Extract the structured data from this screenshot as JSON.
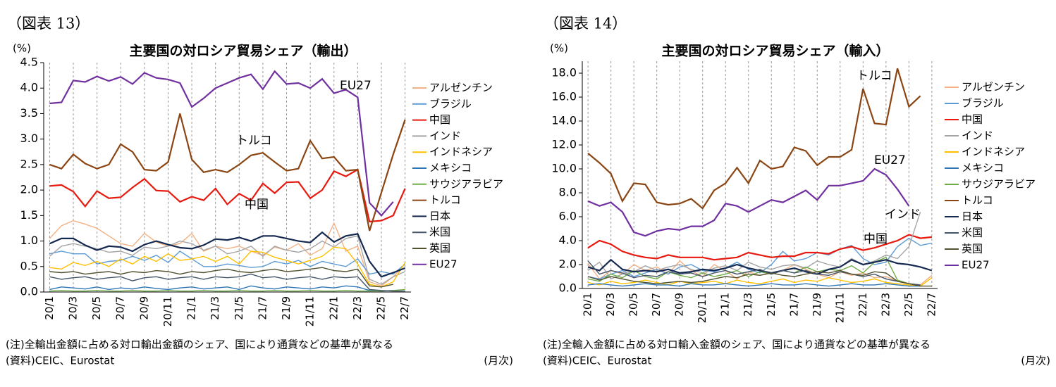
{
  "chart_data": [
    {
      "type": "line",
      "figure_label": "（図表 13）",
      "title": "主要国の対ロシア貿易シェア（輸出）",
      "y_unit": "(%)",
      "note": "(注)全輸出金額に占める対ロ輸出金額のシェア、国により通貨などの基準が異なる",
      "source": "(資料)CEIC、Eurostat",
      "x_unit": "(月次)",
      "categories": [
        "20/1",
        null,
        "20/3",
        null,
        "20/5",
        null,
        "20/7",
        null,
        "20/9",
        null,
        "20/11",
        null,
        "21/1",
        null,
        "21/3",
        null,
        "21/5",
        null,
        "21/7",
        null,
        "21/9",
        null,
        "21/11",
        null,
        "22/1",
        null,
        "22/3",
        null,
        "22/5",
        null,
        "22/7"
      ],
      "ylim": [
        0,
        4.5
      ],
      "yticks": [
        {
          "value": 0,
          "label": "0.0"
        },
        0.5,
        {
          "value": 1,
          "label": "1.0"
        },
        1.5,
        {
          "value": 2,
          "label": "2.0"
        },
        2.5,
        {
          "value": 3,
          "label": "3.0"
        },
        3.5,
        {
          "value": 4,
          "label": "4.0"
        },
        4.5
      ],
      "grid": true,
      "series": [
        {
          "name": "アルゼンチン",
          "color": "#f4b183",
          "values": [
            1.05,
            1.3,
            1.4,
            1.33,
            1.25,
            1.1,
            0.95,
            0.9,
            1.15,
            0.98,
            0.9,
            0.95,
            1.15,
            0.8,
            0.9,
            0.85,
            0.9,
            0.8,
            0.72,
            0.88,
            0.82,
            0.95,
            0.72,
            0.85,
            1.35,
            0.8,
            0.9,
            0.2,
            0.12,
            0.3,
            0.55
          ]
        },
        {
          "name": "ブラジル",
          "color": "#5b9bd5",
          "values": [
            0.75,
            0.8,
            0.75,
            0.75,
            0.55,
            0.6,
            0.62,
            0.7,
            0.62,
            0.72,
            0.58,
            0.8,
            0.65,
            0.5,
            0.5,
            0.55,
            0.52,
            0.48,
            0.5,
            0.6,
            0.55,
            0.62,
            0.5,
            0.6,
            0.55,
            0.5,
            0.65,
            0.35,
            0.4,
            0.35,
            0.55
          ]
        },
        {
          "name": "中国",
          "color": "#e8190f",
          "values": [
            2.08,
            2.1,
            1.97,
            1.68,
            1.98,
            1.84,
            1.86,
            2.05,
            2.22,
            1.99,
            1.98,
            1.77,
            1.87,
            1.8,
            2.03,
            1.72,
            1.93,
            1.8,
            2.13,
            1.94,
            2.15,
            2.16,
            1.84,
            2.0,
            2.37,
            2.27,
            2.4,
            1.38,
            1.4,
            1.5,
            2.03
          ]
        },
        {
          "name": "インド",
          "color": "#a5a5a5",
          "values": [
            0.7,
            0.9,
            0.95,
            0.9,
            0.85,
            0.78,
            0.8,
            0.72,
            0.88,
            0.85,
            0.9,
            1.0,
            0.95,
            0.82,
            0.9,
            0.75,
            0.8,
            0.9,
            0.7,
            0.9,
            0.82,
            0.78,
            0.85,
            1.0,
            0.88,
            1.05,
            1.1,
            0.25,
            0.15,
            0.3,
            0.4
          ]
        },
        {
          "name": "インドネシア",
          "color": "#ffc000",
          "values": [
            0.48,
            0.45,
            0.58,
            0.52,
            0.6,
            0.5,
            0.65,
            0.55,
            0.7,
            0.6,
            0.75,
            0.62,
            0.65,
            0.7,
            0.6,
            0.7,
            0.55,
            0.8,
            0.78,
            0.68,
            0.62,
            0.55,
            0.62,
            0.7,
            0.88,
            0.85,
            0.55,
            0.15,
            0.1,
            0.2,
            0.58
          ]
        },
        {
          "name": "メキシコ",
          "color": "#2e75b6",
          "values": [
            0.05,
            0.1,
            0.08,
            0.06,
            0.1,
            0.05,
            0.08,
            0.06,
            0.1,
            0.07,
            0.05,
            0.08,
            0.1,
            0.06,
            0.08,
            0.1,
            0.05,
            0.12,
            0.08,
            0.06,
            0.1,
            0.08,
            0.06,
            0.1,
            0.08,
            0.12,
            0.1,
            0.03,
            0.02,
            0.03,
            null
          ]
        },
        {
          "name": "サウジアラビア",
          "color": "#70ad47",
          "values": [
            0.02,
            0.03,
            0.02,
            0.02,
            0.03,
            0.02,
            0.02,
            0.03,
            0.02,
            0.02,
            0.03,
            0.02,
            0.02,
            0.03,
            0.02,
            0.02,
            0.03,
            0.02,
            0.02,
            0.03,
            0.02,
            0.02,
            0.03,
            0.02,
            0.02,
            0.03,
            0.02,
            0.02,
            0.02,
            0.03,
            0.05
          ]
        },
        {
          "name": "トルコ",
          "color": "#8b4513",
          "values": [
            2.5,
            2.42,
            2.7,
            2.52,
            2.42,
            2.5,
            2.9,
            2.75,
            2.4,
            2.38,
            2.55,
            3.5,
            2.6,
            2.35,
            2.4,
            2.35,
            2.5,
            2.68,
            2.73,
            2.55,
            2.38,
            2.42,
            2.97,
            2.62,
            2.65,
            2.38,
            2.4,
            1.2,
            1.95,
            2.7,
            3.38
          ]
        },
        {
          "name": "日本",
          "color": "#142850",
          "values": [
            0.95,
            1.05,
            1.05,
            0.92,
            0.82,
            0.9,
            0.88,
            0.8,
            0.93,
            1.0,
            0.93,
            0.87,
            0.85,
            0.92,
            1.04,
            1.02,
            1.07,
            1.0,
            1.1,
            1.1,
            1.05,
            1.0,
            0.97,
            1.17,
            0.98,
            1.1,
            1.14,
            0.6,
            0.3,
            0.38,
            0.47
          ]
        },
        {
          "name": "米国",
          "color": "#44546a",
          "values": [
            0.3,
            0.25,
            0.28,
            0.3,
            0.25,
            0.28,
            0.3,
            0.22,
            0.28,
            0.3,
            0.25,
            0.28,
            0.3,
            0.25,
            0.3,
            0.28,
            0.3,
            0.35,
            0.28,
            0.3,
            0.25,
            0.28,
            0.3,
            0.25,
            0.3,
            0.28,
            0.3,
            0.05,
            0.03,
            0.02,
            0.02
          ]
        },
        {
          "name": "英国",
          "color": "#525230",
          "values": [
            0.4,
            0.38,
            0.4,
            0.35,
            0.38,
            0.4,
            0.35,
            0.4,
            0.38,
            0.42,
            0.4,
            0.35,
            0.4,
            0.38,
            0.42,
            0.45,
            0.4,
            0.38,
            0.42,
            0.45,
            0.4,
            0.42,
            0.45,
            0.48,
            0.42,
            0.4,
            0.45,
            0.12,
            0.1,
            0.15,
            null
          ]
        },
        {
          "name": "EU27",
          "color": "#7030a0",
          "values": [
            3.7,
            3.72,
            4.15,
            4.12,
            4.23,
            4.14,
            4.22,
            4.08,
            4.3,
            4.2,
            4.17,
            4.1,
            3.63,
            3.8,
            4.0,
            4.1,
            4.2,
            4.27,
            3.98,
            4.33,
            4.08,
            4.1,
            4.0,
            4.18,
            3.9,
            3.97,
            3.82,
            1.75,
            1.5,
            1.77,
            null
          ]
        }
      ],
      "annotations": [
        {
          "text": "EU27",
          "color": "#7030a0"
        },
        {
          "text": "トルコ",
          "color": "#8b4513"
        },
        {
          "text": "中国",
          "color": "#e8190f"
        }
      ]
    },
    {
      "type": "line",
      "figure_label": "（図表 14）",
      "title": "主要国の対ロシア貿易シェア（輸入）",
      "y_unit": "(%)",
      "note": "(注)全輸入金額に占める対ロ輸入金額のシェア、国により通貨などの基準が異なる",
      "source": "(資料)CEIC、Eurostat",
      "x_unit": "(月次)",
      "categories": [
        "20/1",
        null,
        "20/3",
        null,
        "20/5",
        null,
        "20/7",
        null,
        "20/9",
        null,
        "20/11",
        null,
        "21/1",
        null,
        "21/3",
        null,
        "21/5",
        null,
        "21/7",
        null,
        "21/9",
        null,
        "21/11",
        null,
        "22/1",
        null,
        "22/3",
        null,
        "22/5",
        null,
        "22/7"
      ],
      "ylim": [
        0,
        19
      ],
      "yticks": [
        {
          "value": 0,
          "label": "0.0"
        },
        {
          "value": 2,
          "label": "2.0"
        },
        {
          "value": 4,
          "label": "4.0"
        },
        {
          "value": 6,
          "label": "6.0"
        },
        {
          "value": 8,
          "label": "8.0"
        },
        {
          "value": 10,
          "label": "10.0"
        },
        {
          "value": 12,
          "label": "12.0"
        },
        {
          "value": 14,
          "label": "14.0"
        },
        {
          "value": 16,
          "label": "16.0"
        },
        {
          "value": 18,
          "label": "18.0"
        }
      ],
      "grid": true,
      "series": [
        {
          "name": "アルゼンチン",
          "color": "#f4b183",
          "values": [
            2.1,
            0.8,
            1.5,
            1.2,
            2.0,
            1.5,
            1.8,
            1.2,
            2.3,
            1.5,
            1.0,
            2.0,
            1.5,
            0.8,
            1.4,
            1.1,
            1.3,
            1.5,
            2.0,
            1.6,
            1.2,
            0.9,
            1.4,
            1.1,
            1.3,
            0.9,
            1.0,
            0.6,
            0.4,
            0.3,
            1.1
          ]
        },
        {
          "name": "ブラジル",
          "color": "#5b9bd5",
          "values": [
            1.0,
            0.8,
            1.2,
            1.5,
            1.0,
            1.3,
            1.6,
            1.2,
            1.8,
            2.0,
            1.5,
            1.4,
            1.7,
            2.2,
            1.6,
            1.3,
            2.0,
            3.1,
            2.3,
            2.5,
            3.0,
            2.8,
            3.3,
            3.6,
            2.5,
            2.0,
            2.2,
            3.5,
            4.2,
            3.6,
            3.8
          ]
        },
        {
          "name": "中国",
          "color": "#e8190f",
          "values": [
            3.4,
            4.0,
            3.7,
            3.1,
            2.8,
            2.6,
            2.5,
            2.8,
            2.6,
            2.6,
            2.6,
            2.4,
            2.5,
            2.6,
            3.0,
            2.8,
            2.6,
            2.7,
            2.7,
            3.0,
            3.0,
            2.9,
            3.3,
            3.5,
            3.2,
            3.4,
            3.7,
            4.0,
            4.5,
            4.2,
            4.3
          ]
        },
        {
          "name": "インド",
          "color": "#a5a5a5",
          "values": [
            1.5,
            2.2,
            0.8,
            1.2,
            1.4,
            1.9,
            1.5,
            1.8,
            2.0,
            1.6,
            1.3,
            1.7,
            1.9,
            1.5,
            2.2,
            1.8,
            1.6,
            1.9,
            2.0,
            1.7,
            2.3,
            2.0,
            1.8,
            2.5,
            2.0,
            2.3,
            2.8,
            2.5,
            3.5,
            6.4,
            null
          ]
        },
        {
          "name": "インドネシア",
          "color": "#ffc000",
          "values": [
            0.5,
            0.3,
            0.6,
            0.4,
            0.5,
            0.7,
            0.5,
            0.3,
            0.6,
            0.4,
            0.5,
            0.6,
            0.4,
            0.7,
            0.5,
            0.4,
            0.6,
            0.8,
            0.5,
            0.7,
            0.6,
            0.9,
            0.7,
            0.5,
            0.6,
            0.8,
            0.5,
            0.4,
            0.3,
            0.2,
            0.9
          ]
        },
        {
          "name": "メキシコ",
          "color": "#2e75b6",
          "values": [
            0.3,
            0.4,
            0.3,
            0.2,
            0.3,
            0.4,
            0.3,
            0.3,
            0.2,
            0.4,
            0.3,
            0.3,
            0.4,
            0.3,
            0.2,
            0.3,
            0.4,
            0.3,
            0.3,
            0.4,
            0.3,
            0.2,
            0.3,
            0.4,
            0.3,
            0.3,
            0.4,
            0.3,
            0.2,
            0.2,
            null
          ]
        },
        {
          "name": "サウジアラビア",
          "color": "#70ad47",
          "values": [
            0.8,
            0.6,
            1.2,
            0.9,
            1.5,
            1.0,
            0.8,
            1.4,
            1.1,
            0.9,
            1.3,
            1.0,
            1.2,
            1.5,
            1.0,
            1.4,
            1.2,
            1.5,
            1.3,
            1.8,
            1.4,
            1.6,
            1.5,
            1.9,
            1.3,
            2.2,
            2.6,
            0.7,
            0.4,
            0.3,
            null
          ]
        },
        {
          "name": "トルコ",
          "color": "#8b4513",
          "values": [
            11.3,
            10.5,
            9.6,
            7.3,
            8.8,
            8.7,
            7.2,
            7.0,
            7.1,
            7.5,
            6.7,
            8.2,
            8.8,
            10.1,
            8.8,
            10.7,
            10.0,
            10.2,
            11.8,
            11.5,
            10.3,
            11.0,
            11.0,
            11.6,
            16.7,
            13.8,
            13.7,
            18.4,
            15.2,
            16.1,
            null
          ]
        },
        {
          "name": "日本",
          "color": "#142850",
          "values": [
            1.8,
            1.5,
            2.4,
            1.6,
            1.4,
            1.5,
            1.4,
            1.6,
            1.3,
            1.4,
            1.6,
            1.5,
            1.7,
            2.0,
            1.7,
            1.5,
            1.3,
            1.5,
            1.7,
            1.4,
            1.2,
            1.6,
            1.8,
            2.4,
            2.0,
            2.2,
            2.4,
            2.1,
            2.0,
            1.8,
            1.5
          ]
        },
        {
          "name": "米国",
          "color": "#44546a",
          "values": [
            2.3,
            1.2,
            1.5,
            1.3,
            0.9,
            1.1,
            1.0,
            1.4,
            1.2,
            1.3,
            1.0,
            1.3,
            1.5,
            1.2,
            1.4,
            1.6,
            1.2,
            1.5,
            1.3,
            1.5,
            1.2,
            1.1,
            1.4,
            1.2,
            1.0,
            1.2,
            0.8,
            0.6,
            0.4,
            0.3,
            null
          ]
        },
        {
          "name": "英国",
          "color": "#525230",
          "values": [
            1.0,
            0.7,
            1.0,
            0.8,
            0.6,
            0.5,
            0.4,
            0.5,
            0.6,
            0.5,
            0.6,
            0.8,
            1.0,
            0.9,
            1.2,
            1.1,
            1.3,
            1.1,
            1.0,
            1.2,
            1.4,
            1.3,
            1.5,
            1.2,
            1.1,
            1.4,
            1.3,
            0.6,
            0.4,
            0.2,
            0.2
          ]
        },
        {
          "name": "EU27",
          "color": "#7030a0",
          "values": [
            7.3,
            6.9,
            7.2,
            6.4,
            4.7,
            4.4,
            4.8,
            5.0,
            4.9,
            5.2,
            5.2,
            5.7,
            7.1,
            6.9,
            6.4,
            6.9,
            7.4,
            7.2,
            7.7,
            8.2,
            7.4,
            8.6,
            8.6,
            8.8,
            9.0,
            10.0,
            9.5,
            8.3,
            6.9,
            null,
            null
          ]
        }
      ],
      "annotations": [
        {
          "text": "トルコ",
          "color": "#8b4513"
        },
        {
          "text": "EU27",
          "color": "#7030a0"
        },
        {
          "text": "インド",
          "color": "#a5a5a5"
        },
        {
          "text": "中国",
          "color": "#e8190f"
        }
      ]
    }
  ]
}
